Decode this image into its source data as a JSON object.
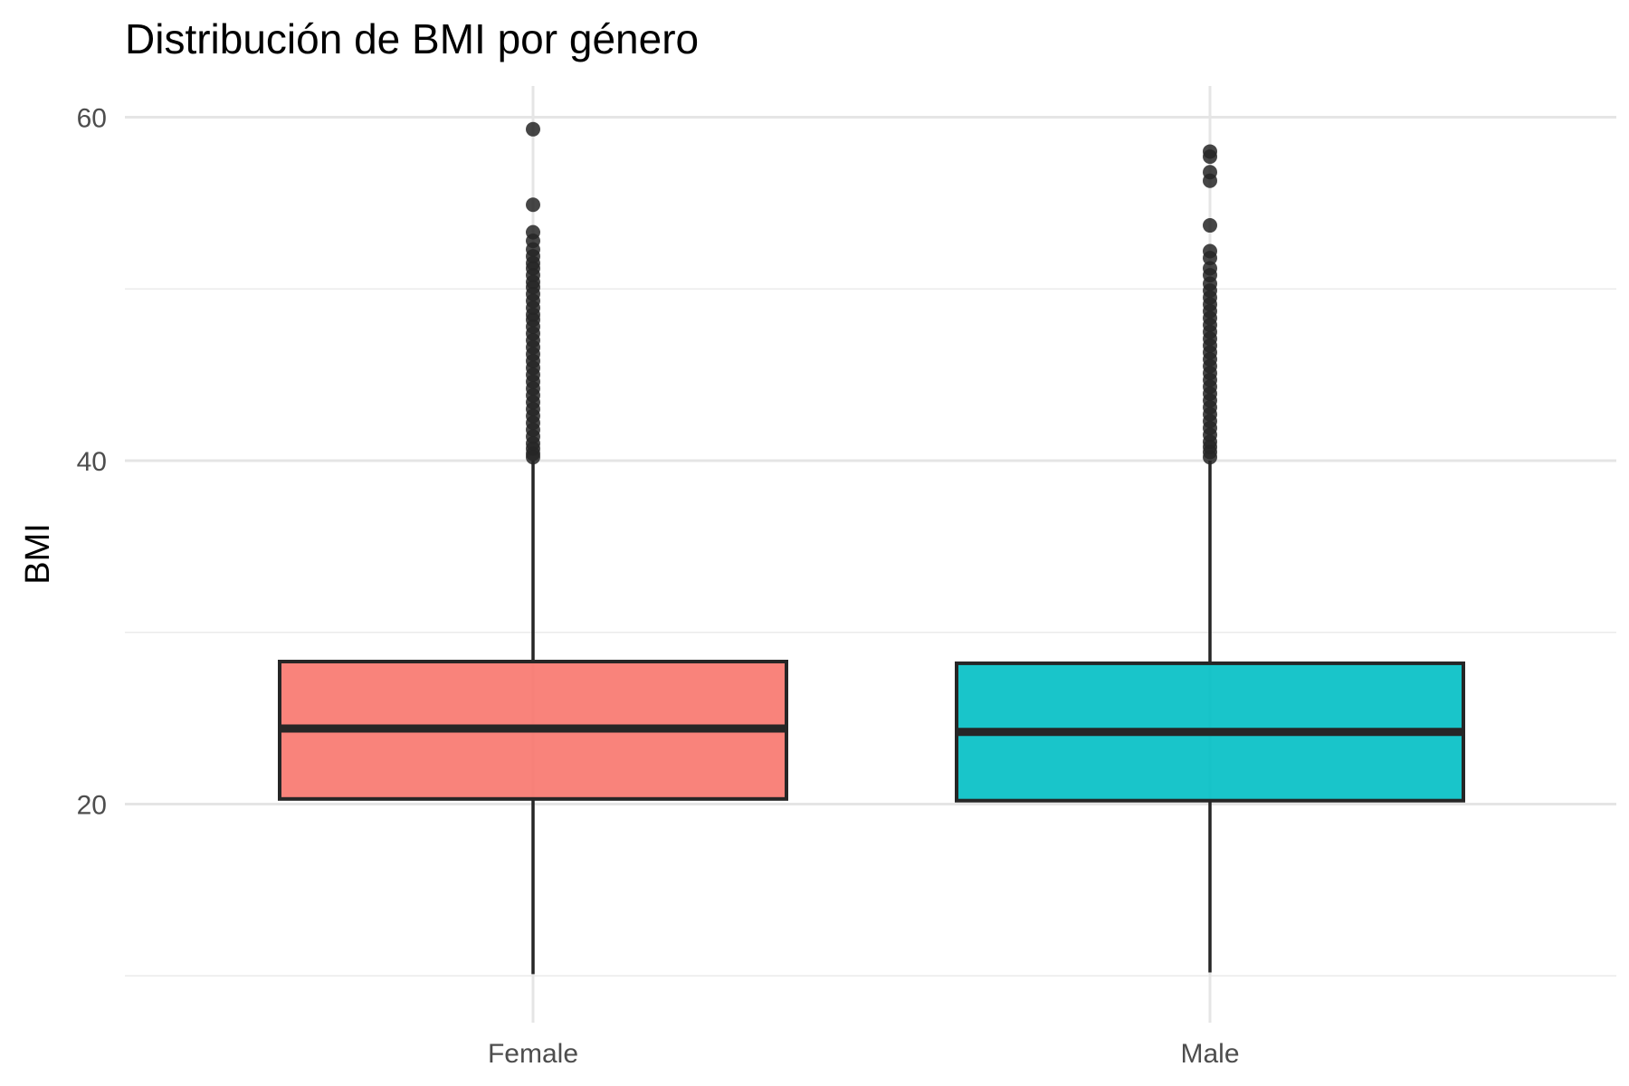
{
  "chart_data": {
    "type": "boxplot",
    "title": "Distribución de BMI por género",
    "xlabel": "",
    "ylabel": "BMI",
    "ylim": [
      9.9,
      62
    ],
    "y_ticks": [
      20,
      40,
      60
    ],
    "y_minor_ticks": [
      10,
      30,
      50
    ],
    "grid": true,
    "legend": "none",
    "categories": [
      "Female",
      "Male"
    ],
    "series": [
      {
        "category": "Female",
        "color": "#F8766D",
        "whisker_low": 10.1,
        "q1": 20.3,
        "median": 24.4,
        "q3": 28.3,
        "whisker_high": 40.0,
        "outliers": [
          59.3,
          54.9,
          53.3,
          52.8,
          52.3,
          51.9,
          51.5,
          51.2,
          50.8,
          50.4,
          50.1,
          49.7,
          49.3,
          48.9,
          48.5,
          48.2,
          47.8,
          47.4,
          47.0,
          46.6,
          46.2,
          45.8,
          45.4,
          45.0,
          44.6,
          44.2,
          43.8,
          43.4,
          43.0,
          42.6,
          42.2,
          41.8,
          41.4,
          41.0,
          40.7,
          40.4,
          40.2
        ]
      },
      {
        "category": "Male",
        "color": "#00BFC4",
        "whisker_low": 10.2,
        "q1": 20.2,
        "median": 24.2,
        "q3": 28.2,
        "whisker_high": 40.0,
        "outliers": [
          58.0,
          57.7,
          56.8,
          56.3,
          53.7,
          52.2,
          51.8,
          51.2,
          50.8,
          50.3,
          49.9,
          49.5,
          49.1,
          48.7,
          48.3,
          47.9,
          47.5,
          47.1,
          46.7,
          46.3,
          45.9,
          45.5,
          45.1,
          44.7,
          44.3,
          43.9,
          43.5,
          43.1,
          42.7,
          42.3,
          41.9,
          41.5,
          41.1,
          40.8,
          40.5,
          40.2
        ]
      }
    ]
  }
}
